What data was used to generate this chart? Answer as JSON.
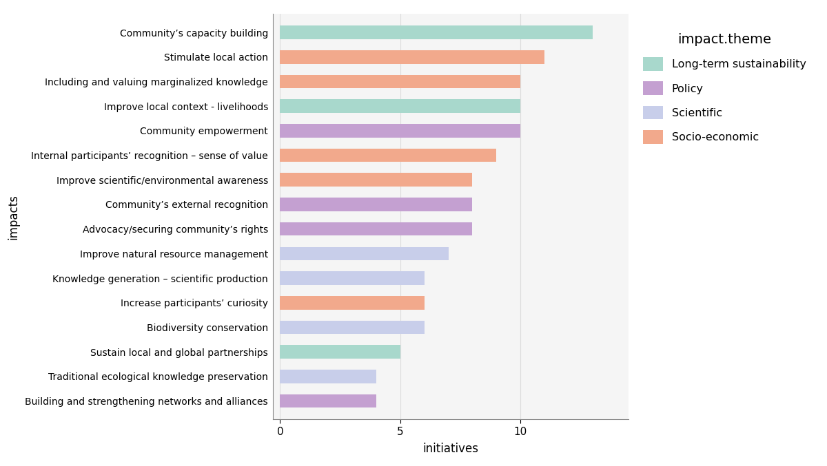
{
  "categories": [
    "Community’s capacity building",
    "Stimulate local action",
    "Including and valuing marginalized knowledge",
    "Improve local context - livelihoods",
    "Community empowerment",
    "Internal participants’ recognition – sense of value",
    "Improve scientific/environmental awareness",
    "Community’s external recognition",
    "Advocacy/securing community’s rights",
    "Improve natural resource management",
    "Knowledge generation – scientific production",
    "Increase participants’ curiosity",
    "Biodiversity conservation",
    "Sustain local and global partnerships",
    "Traditional ecological knowledge preservation",
    "Building and strengthening networks and alliances"
  ],
  "values": [
    13,
    11,
    10,
    10,
    10,
    9,
    8,
    8,
    8,
    7,
    6,
    6,
    6,
    5,
    4,
    4
  ],
  "themes": [
    "Long-term sustainability",
    "Socio-economic",
    "Socio-economic",
    "Long-term sustainability",
    "Policy",
    "Socio-economic",
    "Socio-economic",
    "Policy",
    "Policy",
    "Scientific",
    "Scientific",
    "Socio-economic",
    "Scientific",
    "Long-term sustainability",
    "Scientific",
    "Policy"
  ],
  "theme_colors": {
    "Long-term sustainability": "#A8D8CC",
    "Policy": "#C4A0D1",
    "Scientific": "#C8CEEA",
    "Socio-economic": "#F2A98C"
  },
  "legend_labels": [
    "Long-term sustainability",
    "Policy",
    "Scientific",
    "Socio-economic"
  ],
  "legend_colors": [
    "#A8D8CC",
    "#C4A0D1",
    "#C8CEEA",
    "#F2A98C"
  ],
  "xlabel": "initiatives",
  "ylabel": "impacts",
  "legend_title": "impact.theme",
  "xlim": [
    -0.3,
    14.5
  ],
  "xticks": [
    0,
    5,
    10
  ],
  "plot_bg_color": "#F5F5F5",
  "fig_bg_color": "#FFFFFF",
  "grid_color": "#DDDDDD",
  "bar_height": 0.55,
  "spine_color": "#888888"
}
